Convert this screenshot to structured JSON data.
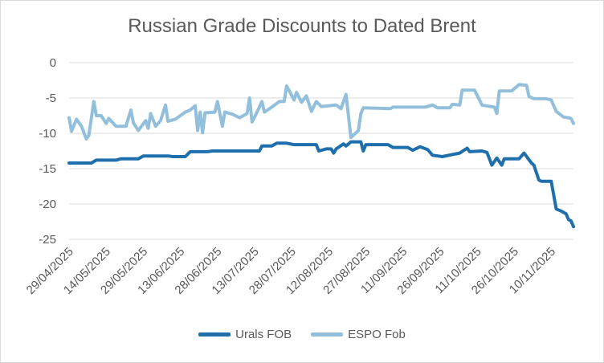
{
  "chart_data": {
    "type": "line",
    "title": "Russian Grade Discounts to Dated Brent",
    "xlabel": "",
    "ylabel": "",
    "ylim": [
      -25,
      0
    ],
    "yticks": [
      0,
      -5,
      -10,
      -15,
      -20,
      -25
    ],
    "ytick_labels": [
      "0",
      "-5",
      "-10",
      "-15",
      "-20",
      "-25"
    ],
    "x_start": "29/04/2025",
    "x_end": "19/11/2025",
    "xtick_labels": [
      "29/04/2025",
      "14/05/2025",
      "29/05/2025",
      "13/06/2025",
      "28/06/2025",
      "13/07/2025",
      "28/07/2025",
      "12/08/2025",
      "27/08/2025",
      "11/09/2025",
      "26/09/2025",
      "11/10/2025",
      "26/10/2025",
      "10/11/2025"
    ],
    "grid": "horizontal",
    "legend": "bottom",
    "series": [
      {
        "name": "Urals FOB",
        "color": "#1f6fad",
        "points": [
          [
            "29/04/2025",
            -14.2
          ],
          [
            "08/05/2025",
            -14.2
          ],
          [
            "10/05/2025",
            -13.8
          ],
          [
            "18/05/2025",
            -13.8
          ],
          [
            "20/05/2025",
            -13.6
          ],
          [
            "27/05/2025",
            -13.6
          ],
          [
            "29/05/2025",
            -13.2
          ],
          [
            "08/06/2025",
            -13.2
          ],
          [
            "10/06/2025",
            -13.3
          ],
          [
            "15/06/2025",
            -13.3
          ],
          [
            "17/06/2025",
            -12.6
          ],
          [
            "24/06/2025",
            -12.6
          ],
          [
            "26/06/2025",
            -12.5
          ],
          [
            "01/07/2025",
            -12.5
          ],
          [
            "03/07/2025",
            -12.5
          ],
          [
            "15/07/2025",
            -12.5
          ],
          [
            "16/07/2025",
            -11.8
          ],
          [
            "20/07/2025",
            -11.8
          ],
          [
            "22/07/2025",
            -11.4
          ],
          [
            "26/07/2025",
            -11.4
          ],
          [
            "29/07/2025",
            -11.6
          ],
          [
            "07/08/2025",
            -11.6
          ],
          [
            "08/08/2025",
            -12.5
          ],
          [
            "11/08/2025",
            -12.2
          ],
          [
            "13/08/2025",
            -12.2
          ],
          [
            "14/08/2025",
            -12.8
          ],
          [
            "15/08/2025",
            -12.2
          ],
          [
            "18/08/2025",
            -11.5
          ],
          [
            "19/08/2025",
            -11.8
          ],
          [
            "21/08/2025",
            -11.2
          ],
          [
            "25/08/2025",
            -11.2
          ],
          [
            "26/08/2025",
            -12.5
          ],
          [
            "27/08/2025",
            -11.6
          ],
          [
            "05/09/2025",
            -11.6
          ],
          [
            "07/09/2025",
            -12.0
          ],
          [
            "13/09/2025",
            -12.0
          ],
          [
            "15/09/2025",
            -12.4
          ],
          [
            "18/09/2025",
            -11.9
          ],
          [
            "21/09/2025",
            -12.3
          ],
          [
            "23/09/2025",
            -13.1
          ],
          [
            "27/09/2025",
            -13.3
          ],
          [
            "01/10/2025",
            -13.0
          ],
          [
            "04/10/2025",
            -12.8
          ],
          [
            "07/10/2025",
            -12.1
          ],
          [
            "08/10/2025",
            -12.6
          ],
          [
            "13/10/2025",
            -12.5
          ],
          [
            "15/10/2025",
            -12.7
          ],
          [
            "17/10/2025",
            -14.5
          ],
          [
            "19/10/2025",
            -13.5
          ],
          [
            "21/10/2025",
            -14.5
          ],
          [
            "22/10/2025",
            -13.6
          ],
          [
            "28/10/2025",
            -13.6
          ],
          [
            "30/10/2025",
            -12.8
          ],
          [
            "02/11/2025",
            -14.2
          ],
          [
            "03/11/2025",
            -14.5
          ],
          [
            "05/11/2025",
            -16.6
          ],
          [
            "06/11/2025",
            -16.8
          ],
          [
            "10/11/2025",
            -16.8
          ],
          [
            "12/11/2025",
            -20.7
          ],
          [
            "14/11/2025",
            -21.0
          ],
          [
            "16/11/2025",
            -21.4
          ],
          [
            "17/11/2025",
            -22.2
          ],
          [
            "18/11/2025",
            -22.4
          ],
          [
            "19/11/2025",
            -23.2
          ]
        ]
      },
      {
        "name": "ESPO Fob",
        "color": "#92c0dc",
        "points": [
          [
            "29/04/2025",
            -7.8
          ],
          [
            "30/04/2025",
            -9.7
          ],
          [
            "02/05/2025",
            -8.0
          ],
          [
            "04/05/2025",
            -9.0
          ],
          [
            "06/05/2025",
            -10.8
          ],
          [
            "07/05/2025",
            -10.3
          ],
          [
            "09/05/2025",
            -5.5
          ],
          [
            "10/05/2025",
            -7.5
          ],
          [
            "12/05/2025",
            -7.5
          ],
          [
            "14/05/2025",
            -8.6
          ],
          [
            "15/05/2025",
            -7.9
          ],
          [
            "18/05/2025",
            -9.0
          ],
          [
            "22/05/2025",
            -9.0
          ],
          [
            "24/05/2025",
            -6.7
          ],
          [
            "25/05/2025",
            -8.5
          ],
          [
            "27/05/2025",
            -9.6
          ],
          [
            "30/05/2025",
            -8.2
          ],
          [
            "31/05/2025",
            -9.3
          ],
          [
            "01/06/2025",
            -7.2
          ],
          [
            "03/06/2025",
            -9.0
          ],
          [
            "05/06/2025",
            -8.2
          ],
          [
            "07/06/2025",
            -6.0
          ],
          [
            "08/06/2025",
            -8.3
          ],
          [
            "11/06/2025",
            -8.0
          ],
          [
            "15/06/2025",
            -7.0
          ],
          [
            "17/06/2025",
            -6.7
          ],
          [
            "19/06/2025",
            -6.1
          ],
          [
            "20/06/2025",
            -9.6
          ],
          [
            "21/06/2025",
            -7.0
          ],
          [
            "22/06/2025",
            -9.9
          ],
          [
            "23/06/2025",
            -7.1
          ],
          [
            "27/06/2025",
            -7.0
          ],
          [
            "28/06/2025",
            -5.5
          ],
          [
            "30/06/2025",
            -9.0
          ],
          [
            "01/07/2025",
            -7.0
          ],
          [
            "04/07/2025",
            -7.3
          ],
          [
            "07/07/2025",
            -7.8
          ],
          [
            "10/07/2025",
            -7.2
          ],
          [
            "11/07/2025",
            -5.0
          ],
          [
            "12/07/2025",
            -8.4
          ],
          [
            "14/07/2025",
            -7.0
          ],
          [
            "16/07/2025",
            -5.5
          ],
          [
            "17/07/2025",
            -7.0
          ],
          [
            "20/07/2025",
            -6.3
          ],
          [
            "23/07/2025",
            -5.5
          ],
          [
            "25/07/2025",
            -5.5
          ],
          [
            "26/07/2025",
            -3.3
          ],
          [
            "29/07/2025",
            -5.3
          ],
          [
            "30/07/2025",
            -4.2
          ],
          [
            "01/08/2025",
            -5.6
          ],
          [
            "03/08/2025",
            -4.7
          ],
          [
            "05/08/2025",
            -6.9
          ],
          [
            "07/08/2025",
            -5.5
          ],
          [
            "09/08/2025",
            -6.2
          ],
          [
            "15/08/2025",
            -6.0
          ],
          [
            "17/08/2025",
            -6.5
          ],
          [
            "19/08/2025",
            -4.5
          ],
          [
            "21/08/2025",
            -10.6
          ],
          [
            "24/08/2025",
            -9.6
          ],
          [
            "25/08/2025",
            -7.2
          ],
          [
            "26/08/2025",
            -6.4
          ],
          [
            "06/09/2025",
            -6.5
          ],
          [
            "07/09/2025",
            -6.3
          ],
          [
            "20/09/2025",
            -6.3
          ],
          [
            "23/09/2025",
            -6.0
          ],
          [
            "25/09/2025",
            -6.4
          ],
          [
            "30/09/2025",
            -6.4
          ],
          [
            "01/10/2025",
            -5.9
          ],
          [
            "04/10/2025",
            -6.0
          ],
          [
            "05/10/2025",
            -3.9
          ],
          [
            "10/10/2025",
            -3.9
          ],
          [
            "13/10/2025",
            -6.0
          ],
          [
            "18/10/2025",
            -6.3
          ],
          [
            "19/10/2025",
            -7.2
          ],
          [
            "20/10/2025",
            -4.0
          ],
          [
            "25/10/2025",
            -4.0
          ],
          [
            "28/10/2025",
            -3.1
          ],
          [
            "31/10/2025",
            -3.2
          ],
          [
            "01/11/2025",
            -4.8
          ],
          [
            "03/11/2025",
            -5.1
          ],
          [
            "08/11/2025",
            -5.1
          ],
          [
            "10/11/2025",
            -5.3
          ],
          [
            "12/11/2025",
            -6.9
          ],
          [
            "15/11/2025",
            -7.7
          ],
          [
            "17/11/2025",
            -7.8
          ],
          [
            "18/11/2025",
            -7.9
          ],
          [
            "19/11/2025",
            -8.6
          ]
        ]
      }
    ]
  }
}
